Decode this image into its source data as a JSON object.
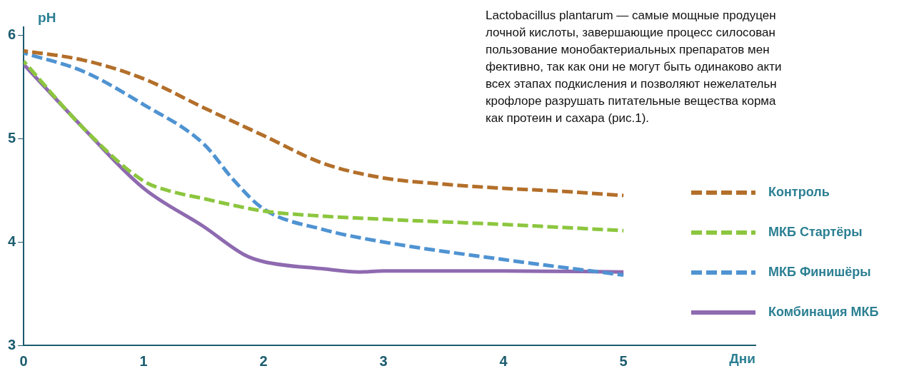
{
  "chart_data": {
    "type": "line",
    "xlabel": "Дни",
    "ylabel": "pH",
    "xlim": [
      0,
      6.1
    ],
    "xticks": [
      0,
      1,
      2,
      3,
      4,
      5
    ],
    "ylim": [
      3,
      6.08
    ],
    "yticks": [
      3,
      4,
      5,
      6
    ],
    "grid": false,
    "legend": "right",
    "marker": "none",
    "series": [
      {
        "name": "Контроль",
        "color": "#b36f2a",
        "line_style": "dashed",
        "x": [
          0,
          0.5,
          1,
          1.5,
          2,
          2.5,
          3,
          3.5,
          4,
          4.5,
          5
        ],
        "values": [
          5.85,
          5.76,
          5.58,
          5.3,
          5.03,
          4.76,
          4.62,
          4.56,
          4.52,
          4.49,
          4.45
        ]
      },
      {
        "name": "МКБ Стартёры",
        "color": "#8cc63e",
        "line_style": "dashed",
        "x": [
          0,
          0.5,
          1,
          1.2,
          1.5,
          2,
          2.5,
          3,
          4,
          5
        ],
        "values": [
          5.75,
          5.1,
          4.59,
          4.5,
          4.42,
          4.3,
          4.25,
          4.22,
          4.17,
          4.11
        ]
      },
      {
        "name": "МКБ Финишёры",
        "color": "#4f93d2",
        "line_style": "dashed",
        "x": [
          0,
          0.5,
          1,
          1.5,
          1.75,
          2,
          2.5,
          3,
          4,
          5
        ],
        "values": [
          5.83,
          5.65,
          5.33,
          4.95,
          4.6,
          4.32,
          4.12,
          4.0,
          3.83,
          3.68
        ]
      },
      {
        "name": "Комбинация МКБ",
        "color": "#8e6ab0",
        "line_style": "solid",
        "x": [
          0,
          0.5,
          1,
          1.5,
          1.85,
          2,
          2.5,
          2.8,
          3,
          4,
          5
        ],
        "values": [
          5.72,
          5.1,
          4.52,
          4.15,
          3.87,
          3.81,
          3.74,
          3.71,
          3.72,
          3.72,
          3.71
        ]
      }
    ],
    "annotations": [
      "Lactobacillus plantarum — самые мощные продуцен",
      "лочной кислоты, завершающие процесс силосован",
      "пользование монобактериальных препаратов мен",
      "фективно, так как они не могут быть одинаково акти",
      "всех этапах подкисления и позволяют нежелательн",
      "крофлоре разрушать питательные вещества корма",
      "как протеин и сахара (рис.1)."
    ]
  }
}
